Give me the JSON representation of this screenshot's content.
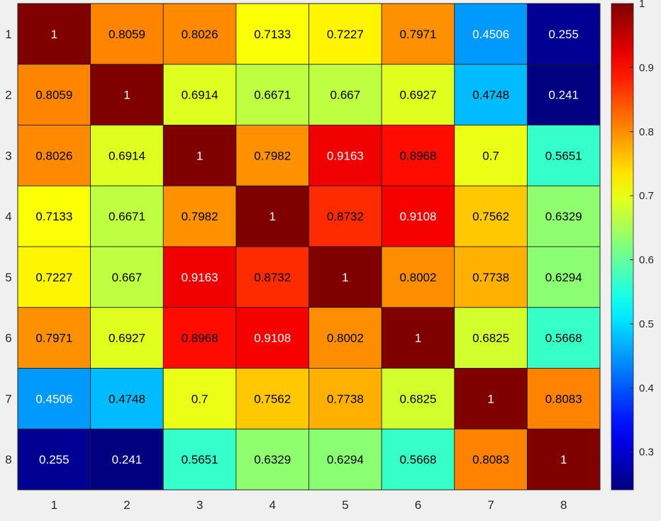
{
  "chart_data": {
    "type": "heatmap",
    "title": "",
    "xlabel": "",
    "ylabel": "",
    "x_labels": [
      "1",
      "2",
      "3",
      "4",
      "5",
      "6",
      "7",
      "8"
    ],
    "y_labels": [
      "1",
      "2",
      "3",
      "4",
      "5",
      "6",
      "7",
      "8"
    ],
    "values": [
      [
        1,
        0.8059,
        0.8026,
        0.7133,
        0.7227,
        0.7971,
        0.4506,
        0.255
      ],
      [
        0.8059,
        1,
        0.6914,
        0.6671,
        0.667,
        0.6927,
        0.4748,
        0.241
      ],
      [
        0.8026,
        0.6914,
        1,
        0.7982,
        0.9163,
        0.8968,
        0.7,
        0.5651
      ],
      [
        0.7133,
        0.6671,
        0.7982,
        1,
        0.8732,
        0.9108,
        0.7562,
        0.6329
      ],
      [
        0.7227,
        0.667,
        0.9163,
        0.8732,
        1,
        0.8002,
        0.7738,
        0.6294
      ],
      [
        0.7971,
        0.6927,
        0.8968,
        0.9108,
        0.8002,
        1,
        0.6825,
        0.5668
      ],
      [
        0.4506,
        0.4748,
        0.7,
        0.7562,
        0.7738,
        0.6825,
        1,
        0.8083
      ],
      [
        0.255,
        0.241,
        0.5651,
        0.6329,
        0.6294,
        0.5668,
        0.8083,
        1
      ]
    ],
    "cell_labels": [
      [
        "1",
        "0.8059",
        "0.8026",
        "0.7133",
        "0.7227",
        "0.7971",
        "0.4506",
        "0.255"
      ],
      [
        "0.8059",
        "1",
        "0.6914",
        "0.6671",
        "0.667",
        "0.6927",
        "0.4748",
        "0.241"
      ],
      [
        "0.8026",
        "0.6914",
        "1",
        "0.7982",
        "0.9163",
        "0.8968",
        "0.7",
        "0.5651"
      ],
      [
        "0.7133",
        "0.6671",
        "0.7982",
        "1",
        "0.8732",
        "0.9108",
        "0.7562",
        "0.6329"
      ],
      [
        "0.7227",
        "0.667",
        "0.9163",
        "0.8732",
        "1",
        "0.8002",
        "0.7738",
        "0.6294"
      ],
      [
        "0.7971",
        "0.6927",
        "0.8968",
        "0.9108",
        "0.8002",
        "1",
        "0.6825",
        "0.5668"
      ],
      [
        "0.4506",
        "0.4748",
        "0.7",
        "0.7562",
        "0.7738",
        "0.6825",
        "1",
        "0.8083"
      ],
      [
        "0.255",
        "0.241",
        "0.5651",
        "0.6329",
        "0.6294",
        "0.5668",
        "0.8083",
        "1"
      ]
    ],
    "colormap": "jet",
    "color_limits": [
      0.241,
      1
    ],
    "colorbar": {
      "ticks": [
        0.3,
        0.4,
        0.5,
        0.6,
        0.7,
        0.8,
        0.9,
        1
      ],
      "tick_labels": [
        "0.3",
        "0.4",
        "0.5",
        "0.6",
        "0.7",
        "0.8",
        "0.9",
        "1"
      ],
      "position": "right"
    },
    "grid": true
  },
  "colors": {
    "background": "#f0f0f0",
    "cell_border": "#1a1a1a",
    "label_dark": "#000000",
    "label_light": "#ffffff"
  }
}
